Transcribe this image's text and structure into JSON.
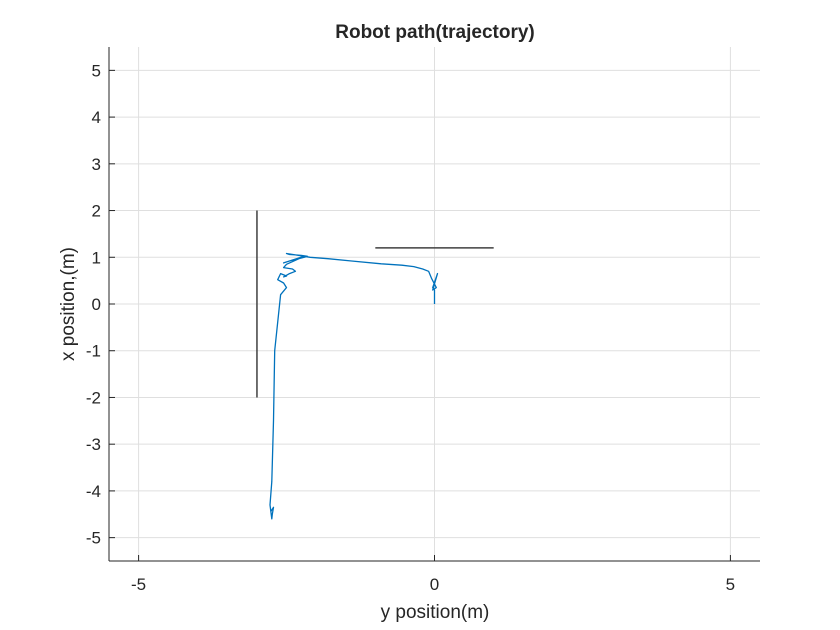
{
  "chart_data": {
    "type": "line",
    "title": "Robot path(trajectory)",
    "xlabel": "y position(m)",
    "ylabel": "x position,(m)",
    "xlim": [
      -5.5,
      5.5
    ],
    "ylim": [
      -5.5,
      5.5
    ],
    "xticks": [
      -5,
      0,
      5
    ],
    "xtick_labels": [
      "-5",
      "0",
      "5"
    ],
    "yticks": [
      5,
      4,
      3,
      2,
      1,
      0,
      -1,
      -2,
      -3,
      -4,
      -5
    ],
    "ytick_labels": [
      "5",
      "4",
      "3",
      "2",
      "1",
      "0",
      "-1",
      "-2",
      "-3",
      "-4",
      "-5"
    ],
    "grid": true,
    "colors": {
      "path": "#0072BD",
      "obstacle": "#404040",
      "grid": "#dfdfdf",
      "axis": "#262626"
    },
    "obstacles": [
      {
        "x": [
          -3,
          -3
        ],
        "y": [
          2,
          -2
        ]
      },
      {
        "x": [
          -1,
          1
        ],
        "y": [
          1.2,
          1.2
        ]
      }
    ],
    "series": [
      {
        "x": [
          0,
          0,
          -0.03,
          0.05,
          -0.03,
          0.03,
          -0.05,
          -0.1,
          -0.2,
          -0.35,
          -0.55,
          -0.9,
          -1.4,
          -1.8,
          -2.1,
          -2.2,
          -2.35,
          -2.5,
          -2.45,
          -2.35,
          -2.25,
          -2.15,
          -2.2,
          -2.3,
          -2.45,
          -2.55,
          -2.2,
          -2.5,
          -2.55,
          -2.4,
          -2.35,
          -2.45,
          -2.55,
          -2.5,
          -2.6,
          -2.65,
          -2.55,
          -2.5,
          -2.6,
          -2.7,
          -2.72,
          -2.75,
          -2.78,
          -2.75,
          -2.74,
          -2.72,
          -2.77
        ],
        "y": [
          0,
          0.3,
          0.35,
          0.65,
          0.3,
          0.35,
          0.55,
          0.7,
          0.75,
          0.8,
          0.83,
          0.86,
          0.92,
          0.97,
          1.0,
          1.02,
          1.05,
          1.08,
          1.06,
          1.05,
          1.04,
          1.02,
          1.0,
          0.97,
          0.92,
          0.88,
          1.02,
          0.85,
          0.78,
          0.75,
          0.7,
          0.65,
          0.58,
          0.6,
          0.65,
          0.52,
          0.45,
          0.35,
          0.2,
          -1.0,
          -2.5,
          -3.8,
          -4.3,
          -4.6,
          -4.5,
          -4.35,
          -4.45
        ]
      }
    ]
  }
}
